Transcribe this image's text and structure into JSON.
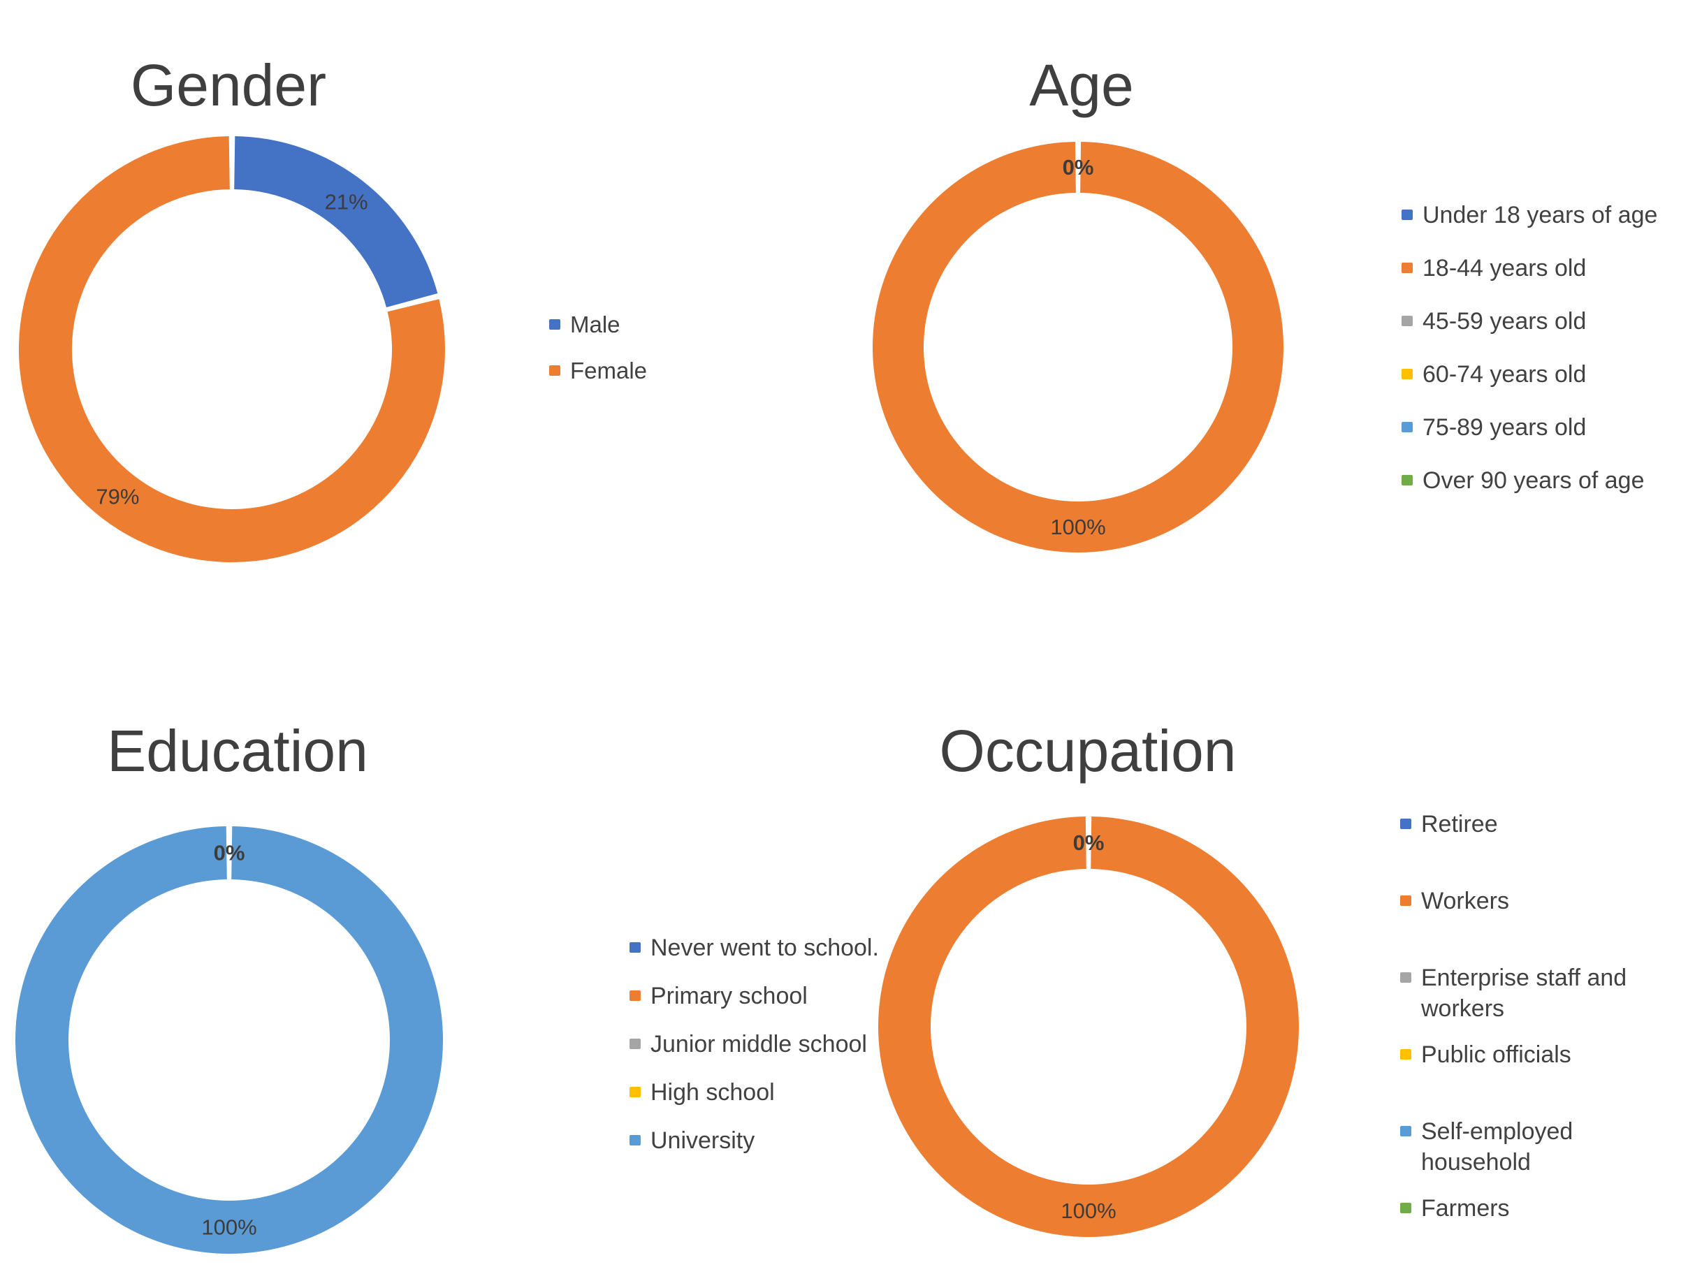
{
  "figure": {
    "background": "#ffffff",
    "text_color": "#3f3f3f"
  },
  "palette": {
    "blue": "#4472C4",
    "orange": "#ED7D31",
    "gray": "#A5A5A5",
    "yellow": "#FFC000",
    "light_blue": "#5B9BD5",
    "green": "#70AD47"
  },
  "chart_data": [
    {
      "type": "pie",
      "subtype": "doughnut",
      "title": "Gender",
      "categories": [
        "Male",
        "Female"
      ],
      "values": [
        21,
        79
      ],
      "colors": [
        "#4472C4",
        "#ED7D31"
      ],
      "data_labels": [
        "21%",
        "79%"
      ],
      "legend_position": "right",
      "hole": 0.75,
      "start_angle": "top",
      "direction": "clockwise"
    },
    {
      "type": "pie",
      "subtype": "doughnut",
      "title": "Age",
      "categories": [
        "Under 18 years of age",
        "18-44 years old",
        "45-59 years old",
        "60-74 years old",
        "75-89 years old",
        "Over 90 years of age"
      ],
      "values": [
        0,
        100,
        0,
        0,
        0,
        0
      ],
      "colors": [
        "#4472C4",
        "#ED7D31",
        "#A5A5A5",
        "#FFC000",
        "#5B9BD5",
        "#70AD47"
      ],
      "data_labels": [
        "0%",
        "100%"
      ],
      "legend_position": "right",
      "hole": 0.75,
      "start_angle": "top",
      "direction": "clockwise"
    },
    {
      "type": "pie",
      "subtype": "doughnut",
      "title": "Education",
      "categories": [
        "Never went to school.",
        "Primary school",
        "Junior middle school",
        "High school",
        "University"
      ],
      "values": [
        0,
        0,
        0,
        0,
        100
      ],
      "colors": [
        "#4472C4",
        "#ED7D31",
        "#A5A5A5",
        "#FFC000",
        "#5B9BD5"
      ],
      "data_labels": [
        "0%",
        "100%"
      ],
      "legend_position": "right",
      "hole": 0.75,
      "start_angle": "top",
      "direction": "clockwise"
    },
    {
      "type": "pie",
      "subtype": "doughnut",
      "title": "Occupation",
      "categories": [
        "Retiree",
        "Workers",
        "Enterprise staff and workers",
        "Public officials",
        "Self-employed household",
        "Farmers"
      ],
      "values": [
        0,
        100,
        0,
        0,
        0,
        0
      ],
      "colors": [
        "#4472C4",
        "#ED7D31",
        "#A5A5A5",
        "#FFC000",
        "#5B9BD5",
        "#70AD47"
      ],
      "data_labels": [
        "0%",
        "100%"
      ],
      "legend_position": "right",
      "hole": 0.75,
      "start_angle": "top",
      "direction": "clockwise"
    }
  ]
}
